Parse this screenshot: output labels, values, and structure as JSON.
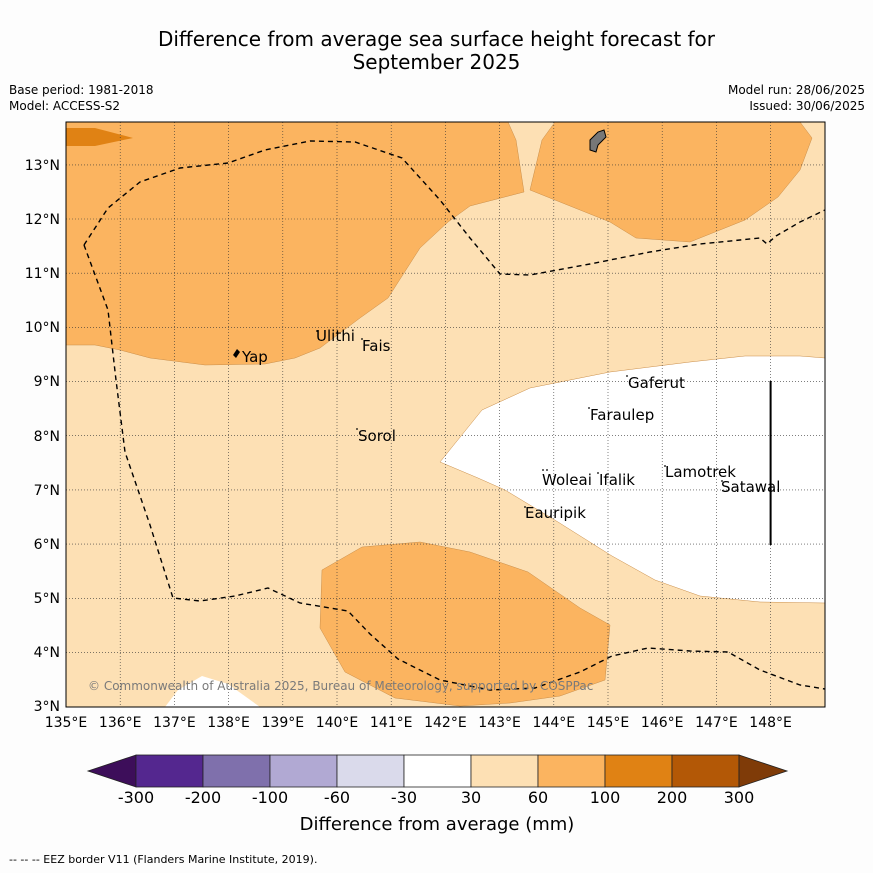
{
  "title_line1": "Difference from average sea surface height forecast for",
  "title_line2": "September 2025",
  "meta": {
    "base_period": "Base period: 1981-2018",
    "model": "Model: ACCESS-S2",
    "model_run": "Model run: 28/06/2025",
    "issued": "Issued: 30/06/2025"
  },
  "map": {
    "lon_labels": [
      "135°E",
      "136°E",
      "137°E",
      "138°E",
      "139°E",
      "140°E",
      "141°E",
      "142°E",
      "143°E",
      "144°E",
      "145°E",
      "146°E",
      "147°E",
      "148°E"
    ],
    "lat_labels": [
      "13°N",
      "12°N",
      "11°N",
      "10°N",
      "9°N",
      "8°N",
      "7°N",
      "6°N",
      "5°N",
      "4°N",
      "3°N"
    ],
    "places": [
      {
        "name": "Yap"
      },
      {
        "name": "Ulithi"
      },
      {
        "name": "Fais"
      },
      {
        "name": "Sorol"
      },
      {
        "name": "Gaferut"
      },
      {
        "name": "Faraulep"
      },
      {
        "name": "Woleai"
      },
      {
        "name": "Ifalik"
      },
      {
        "name": "Lamotrek"
      },
      {
        "name": "Satawal"
      },
      {
        "name": "Eauripik"
      }
    ],
    "copyright": "© Commonwealth of Australia 2025, Bureau of Meteorology, supported by COSPPac"
  },
  "colorbar": {
    "tick_labels": [
      "-300",
      "-200",
      "-100",
      "-60",
      "-30",
      "30",
      "60",
      "100",
      "200",
      "300"
    ],
    "label": "Difference from average (mm)",
    "colors": [
      "#3d0e5a",
      "#54278f",
      "#7f70ac",
      "#b1a9d3",
      "#dadaeb",
      "#ffffff",
      "#fde0b4",
      "#fbb460",
      "#e08214",
      "#b35806",
      "#7f3b08"
    ]
  },
  "footnote": "--  --  -- EEZ border V11 (Flanders Marine Institute, 2019)."
}
